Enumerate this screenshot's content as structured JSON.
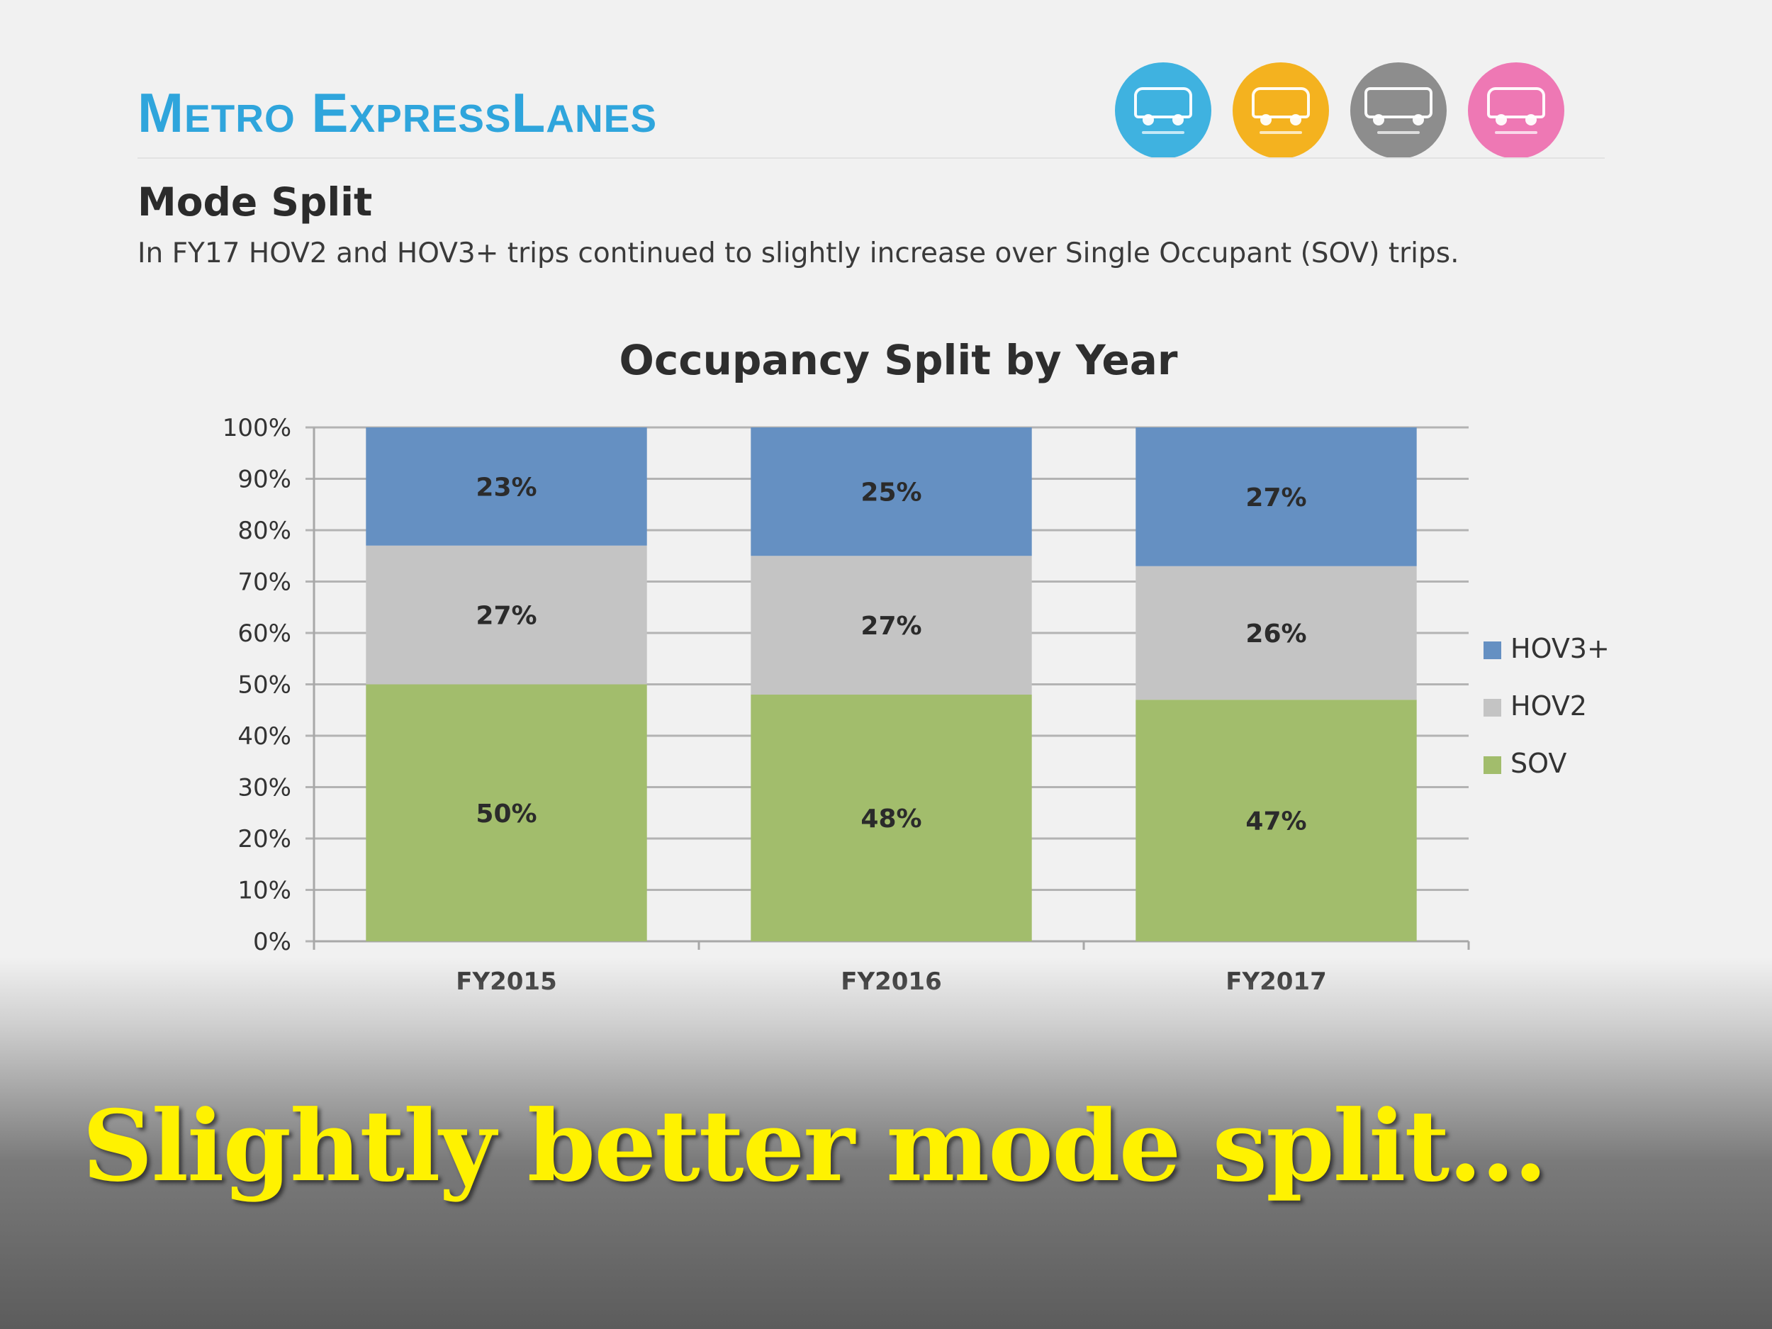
{
  "header": {
    "brand": "Metro ExpressLanes",
    "icons": [
      {
        "name": "vanpool-icon",
        "color": "#3fb2e0"
      },
      {
        "name": "carpool-icon",
        "color": "#f4b21f"
      },
      {
        "name": "bus-icon",
        "color": "#8d8d8d"
      },
      {
        "name": "car-icon",
        "color": "#ee78b4"
      }
    ]
  },
  "section": {
    "title": "Mode Split",
    "description": "In FY17 HOV2 and HOV3+ trips continued to slightly increase over Single Occupant (SOV) trips."
  },
  "chart_data": {
    "type": "bar",
    "stacked": true,
    "title": "Occupancy Split by Year",
    "xlabel": "",
    "ylabel": "",
    "categories": [
      "FY2015",
      "FY2016",
      "FY2017"
    ],
    "series": [
      {
        "name": "SOV",
        "color": "#a2bd6c",
        "values": [
          50,
          48,
          47
        ],
        "labels": [
          "50%",
          "48%",
          "47%"
        ]
      },
      {
        "name": "HOV2",
        "color": "#c4c4c4",
        "values": [
          27,
          27,
          26
        ],
        "labels": [
          "27%",
          "27%",
          "26%"
        ]
      },
      {
        "name": "HOV3+",
        "color": "#6590c2",
        "values": [
          23,
          25,
          27
        ],
        "labels": [
          "23%",
          "25%",
          "27%"
        ]
      }
    ],
    "ylim": [
      0,
      100
    ],
    "yticks": [
      "0%",
      "10%",
      "20%",
      "30%",
      "40%",
      "50%",
      "60%",
      "70%",
      "80%",
      "90%",
      "100%"
    ],
    "grid": true,
    "legend": [
      "HOV3+",
      "HOV2",
      "SOV"
    ],
    "legend_position": "right"
  },
  "caption": "Slightly better mode split..."
}
